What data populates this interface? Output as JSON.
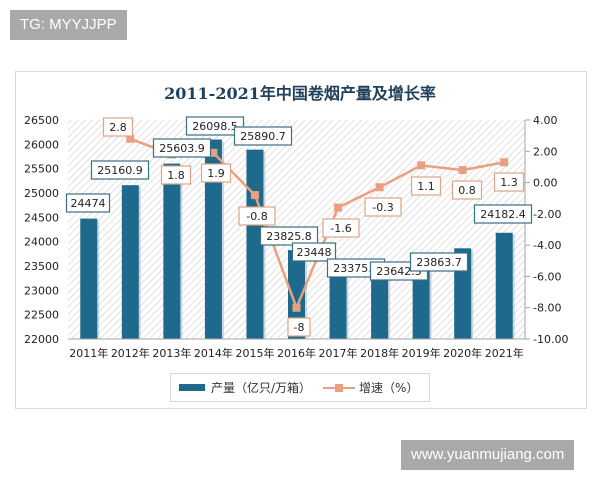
{
  "watermarks": {
    "top": "TG: MYYJJPP",
    "bottom": "www.yuanmujiang.com"
  },
  "colors": {
    "bar": "#1e6a8c",
    "line": "#e8a07f",
    "title": "#1f3f5a"
  },
  "chart_data": {
    "type": "bar+line",
    "title": "2011-2021年中国卷烟产量及增长率",
    "categories": [
      "2011年",
      "2012年",
      "2013年",
      "2014年",
      "2015年",
      "2016年",
      "2017年",
      "2018年",
      "2019年",
      "2020年",
      "2021年"
    ],
    "series": [
      {
        "name": "产量（亿只/万箱）",
        "type": "bar",
        "axis": "left",
        "values": [
          24474,
          25160.9,
          25603.9,
          26098.5,
          25890.7,
          23825.8,
          23448,
          23375.6,
          23642.5,
          23863.7,
          24182.4
        ],
        "labels": [
          "24474",
          "25160.9",
          "25603.9",
          "26098.5",
          "25890.7",
          "23825.8",
          "23448",
          "23375.6",
          "23642.5",
          "23863.7",
          "24182.4"
        ]
      },
      {
        "name": "增速（%）",
        "type": "line",
        "axis": "right",
        "values": [
          2.8,
          1.8,
          1.9,
          -0.8,
          -8,
          -1.6,
          -0.3,
          1.1,
          0.8,
          1.3
        ],
        "x_index": [
          1,
          2,
          3,
          4,
          5,
          6,
          7,
          8,
          9,
          10
        ],
        "labels": [
          "2.8",
          "1.8",
          "1.9",
          "-0.8",
          "-8",
          "-1.6",
          "-0.3",
          "1.1",
          "0.8",
          "1.3"
        ]
      }
    ],
    "left_axis": {
      "ylim": [
        22000,
        26500
      ],
      "ticks": [
        "26500",
        "26000",
        "25500",
        "25000",
        "24500",
        "24000",
        "23500",
        "23000",
        "22500",
        "22000"
      ]
    },
    "right_axis": {
      "ylim": [
        -10,
        4
      ],
      "ticks": [
        "4.00",
        "2.00",
        "0.00",
        "-2.00",
        "-4.00",
        "-6.00",
        "-8.00",
        "-10.00"
      ]
    },
    "legend": {
      "position": "bottom",
      "entries": [
        "产量（亿只/万箱）",
        "增速（%）"
      ]
    },
    "grid": false
  }
}
